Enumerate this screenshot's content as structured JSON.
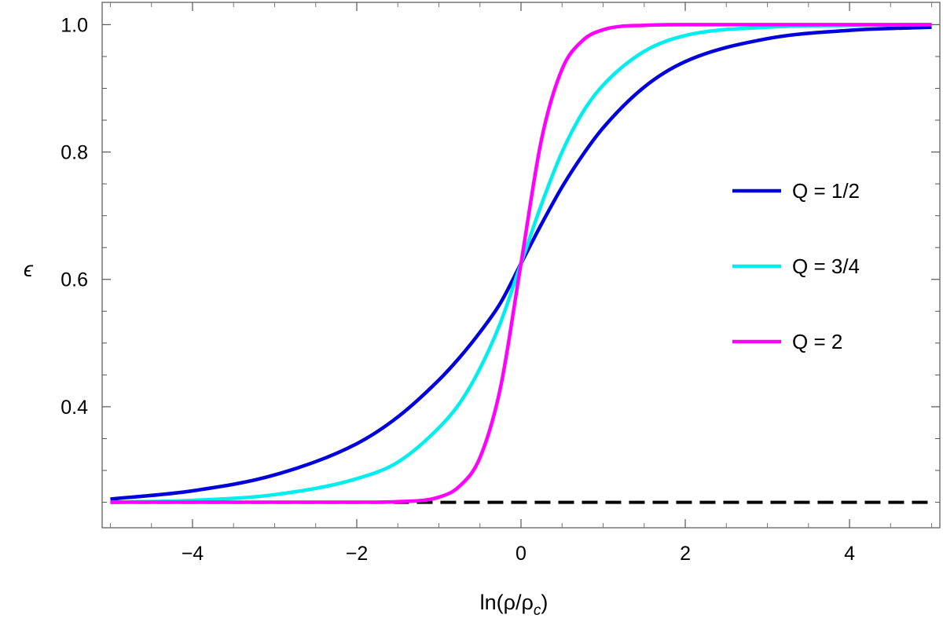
{
  "chart_data": {
    "type": "line",
    "xlabel": "ln(ρ/ρc)",
    "ylabel": "ϵ",
    "xlim": [
      -5.1,
      5.1
    ],
    "ylim": [
      0.21,
      1.035
    ],
    "xticks": [
      -4,
      -2,
      0,
      2,
      4
    ],
    "xtick_labels": [
      "−4",
      "−2",
      "0",
      "2",
      "4"
    ],
    "yticks": [
      0.4,
      0.6,
      0.8,
      1.0
    ],
    "ytick_labels": [
      "0.4",
      "0.6",
      "0.8",
      "1.0"
    ],
    "grid": false,
    "legend_position": "right",
    "x": [
      -5,
      -4,
      -3,
      -2,
      -1.5,
      -1,
      -0.75,
      -0.5,
      -0.25,
      0,
      0.25,
      0.5,
      0.75,
      1,
      1.5,
      2,
      3,
      4,
      5
    ],
    "series": [
      {
        "name": "Q = 1/2",
        "color": "#0000dd",
        "values": [
          0.255,
          0.268,
          0.293,
          0.342,
          0.384,
          0.442,
          0.477,
          0.517,
          0.563,
          0.625,
          0.687,
          0.745,
          0.795,
          0.838,
          0.902,
          0.942,
          0.978,
          0.991,
          0.996
        ]
      },
      {
        "name": "Q = 3/4",
        "color": "#00eeee",
        "values": [
          0.25,
          0.253,
          0.262,
          0.287,
          0.313,
          0.367,
          0.405,
          0.46,
          0.532,
          0.625,
          0.718,
          0.8,
          0.862,
          0.905,
          0.958,
          0.983,
          0.996,
          0.999,
          1.0
        ]
      },
      {
        "name": "Q = 2",
        "color": "#ff00ff",
        "values": [
          0.25,
          0.25,
          0.25,
          0.25,
          0.251,
          0.258,
          0.275,
          0.32,
          0.43,
          0.625,
          0.82,
          0.93,
          0.975,
          0.992,
          0.999,
          1.0,
          1.0,
          1.0,
          1.0
        ]
      }
    ],
    "reference_line": {
      "y": 0.25,
      "style": "dashed",
      "color": "#000000"
    }
  }
}
